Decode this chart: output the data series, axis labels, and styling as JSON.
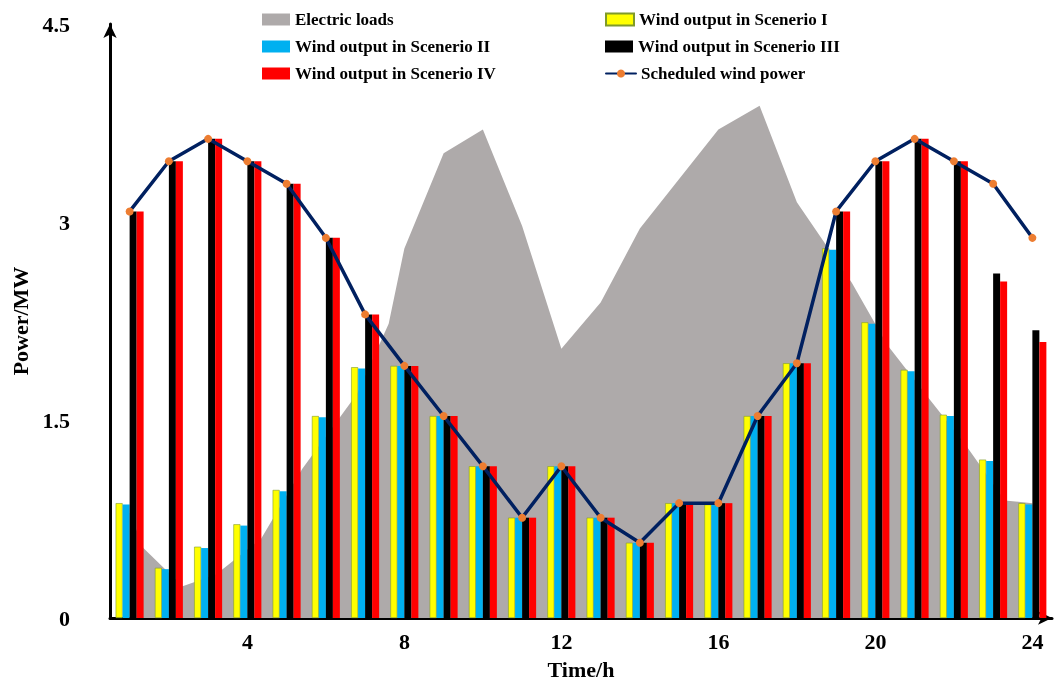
{
  "chart_data": {
    "type": "bar",
    "xlabel": "Time/h",
    "ylabel": "Power/MW",
    "xlim": [
      0.5,
      24.5
    ],
    "xticks": [
      4,
      8,
      12,
      16,
      20,
      24
    ],
    "ylim": [
      0,
      4.5
    ],
    "yticks": [
      0,
      1.5,
      3,
      4.5
    ],
    "x": [
      1,
      2,
      3,
      4,
      5,
      6,
      7,
      8,
      9,
      10,
      11,
      12,
      13,
      14,
      15,
      16,
      17,
      18,
      19,
      20,
      21,
      22,
      23,
      24
    ],
    "grid": false,
    "legend": "top",
    "series": [
      {
        "name": "Electric loads",
        "type": "area",
        "color": "#aeaaaa",
        "x": [
          1,
          1.35,
          2.35,
          3.2,
          4.35,
          5.4,
          6.8,
          7.6,
          8,
          9,
          10,
          11,
          12,
          13,
          14,
          16,
          17.05,
          18,
          19.4,
          20.3,
          21.4,
          22.3,
          23.3,
          24
        ],
        "values": [
          0.8,
          0.53,
          0.24,
          0.33,
          0.6,
          1.13,
          1.7,
          2.23,
          2.8,
          3.52,
          3.7,
          2.97,
          2.04,
          2.39,
          2.95,
          3.7,
          3.88,
          3.15,
          2.54,
          2.07,
          1.65,
          1.31,
          0.89,
          0.87
        ]
      },
      {
        "name": "Wind output in Scenerio I",
        "color": "#ffff00",
        "values": [
          0.87,
          0.38,
          0.54,
          0.71,
          0.97,
          1.53,
          1.9,
          1.91,
          1.53,
          1.15,
          0.76,
          1.15,
          0.76,
          0.57,
          0.87,
          0.86,
          1.53,
          1.93,
          2.8,
          2.24,
          1.88,
          1.54,
          1.2,
          0.87
        ]
      },
      {
        "name": "Wind output in Scenerio II",
        "color": "#00b0f0",
        "values": [
          0.86,
          0.37,
          0.53,
          0.7,
          0.96,
          1.52,
          1.89,
          1.91,
          1.53,
          1.15,
          0.76,
          1.15,
          0.76,
          0.57,
          0.87,
          0.86,
          1.53,
          1.93,
          2.79,
          2.23,
          1.87,
          1.53,
          1.19,
          0.86
        ]
      },
      {
        "name": "Wind output in Scenerio III",
        "color": "#000000",
        "values": [
          3.08,
          3.46,
          3.63,
          3.46,
          3.29,
          2.88,
          2.3,
          1.91,
          1.53,
          1.15,
          0.76,
          1.15,
          0.76,
          0.57,
          0.87,
          0.87,
          1.53,
          1.93,
          3.08,
          3.46,
          3.63,
          3.46,
          2.61,
          2.18
        ]
      },
      {
        "name": "Wind output in Scenerio IV",
        "color": "#ff0000",
        "values": [
          3.08,
          3.46,
          3.63,
          3.46,
          3.29,
          2.88,
          2.3,
          1.91,
          1.53,
          1.15,
          0.76,
          1.15,
          0.76,
          0.57,
          0.87,
          0.87,
          1.53,
          1.93,
          3.08,
          3.46,
          3.63,
          3.46,
          2.55,
          2.09
        ]
      },
      {
        "name": "Scheduled wind power",
        "type": "line",
        "color": "#002060",
        "marker": "circle",
        "line_style": "solid",
        "values": [
          3.08,
          3.46,
          3.63,
          3.46,
          3.29,
          2.88,
          2.3,
          1.91,
          1.53,
          1.15,
          0.76,
          1.15,
          0.76,
          0.57,
          0.87,
          0.87,
          1.53,
          1.93,
          3.08,
          3.46,
          3.63,
          3.46,
          3.29,
          2.88
        ]
      }
    ]
  }
}
